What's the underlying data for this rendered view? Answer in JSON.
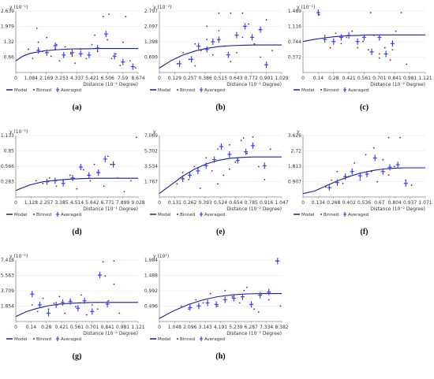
{
  "legend": {
    "model": "Model",
    "binned": "Binned",
    "averaged": "Averaged"
  },
  "colors": {
    "model": "#1a237e",
    "binned": "#8b1a2a",
    "averaged": "#3f3ff0",
    "axis": "#888888",
    "grid": "#e6e6e6"
  },
  "chart_data": [
    {
      "type": "scatter",
      "label": "(a)",
      "ylabel": "γ (10⁻¹)",
      "xlabel": "Distance (10⁻² Degree)",
      "xlim": [
        0,
        8.674
      ],
      "ylim": [
        0,
        2.639
      ],
      "xticks": [
        "0",
        "1.084",
        "2.169",
        "3.253",
        "4.337",
        "5.421",
        "6.506",
        "7.59",
        "8.674"
      ],
      "yticks": [
        "0.66",
        "1.32",
        "1.979",
        "2.639"
      ],
      "model": {
        "x": [
          0,
          0.5,
          1,
          2,
          3,
          4,
          5,
          6,
          7,
          8,
          8.674
        ],
        "y": [
          0.5,
          0.7,
          0.82,
          0.93,
          0.98,
          1.01,
          1.02,
          1.03,
          1.03,
          1.03,
          1.03
        ]
      },
      "binned": {
        "x": [
          0.9,
          1.2,
          1.6,
          1.9,
          2.2,
          2.5,
          2.8,
          3.1,
          3.5,
          3.9,
          4.2,
          4.6,
          5.0,
          5.4,
          5.8,
          6.2,
          6.5,
          6.8,
          7.1,
          7.4,
          7.8,
          8.1,
          8.5,
          1.5,
          2.9,
          4.0,
          5.6,
          6.6,
          7.6
        ],
        "y": [
          1.0,
          0.6,
          1.3,
          0.9,
          1.5,
          0.7,
          1.0,
          0.5,
          1.1,
          0.8,
          0.4,
          1.0,
          0.6,
          1.2,
          0.9,
          2.4,
          1.4,
          0.6,
          0.8,
          0.3,
          2.4,
          0.5,
          0.2,
          1.9,
          1.2,
          0.7,
          1.6,
          2.5,
          1.3
        ]
      },
      "averaged": {
        "x": [
          1.6,
          2.2,
          2.8,
          3.4,
          4.0,
          4.6,
          5.2,
          5.8,
          6.4,
          7.0,
          7.6,
          8.3
        ],
        "y": [
          0.95,
          0.85,
          1.15,
          0.75,
          0.85,
          0.8,
          0.75,
          1.05,
          1.65,
          0.7,
          0.45,
          0.25
        ]
      }
    },
    {
      "type": "scatter",
      "label": "(b)",
      "ylabel": "γ (10⁻²)",
      "xlabel": "Distance (10⁻¹ Degree)",
      "xlim": [
        0,
        1.029
      ],
      "ylim": [
        0,
        2.797
      ],
      "xticks": [
        "0",
        "0.129",
        "0.257",
        "0.386",
        "0.515",
        "0.643",
        "0.772",
        "0.901",
        "1.029"
      ],
      "yticks": [
        "0.699",
        "1.398",
        "2.097",
        "2.797"
      ],
      "model": {
        "x": [
          0,
          0.1,
          0.2,
          0.3,
          0.4,
          0.5,
          0.6,
          0.7,
          0.8,
          0.9,
          1.029
        ],
        "y": [
          0.2,
          0.55,
          0.8,
          0.98,
          1.1,
          1.18,
          1.22,
          1.24,
          1.25,
          1.25,
          1.25
        ]
      },
      "binned": {
        "x": [
          0.15,
          0.2,
          0.25,
          0.3,
          0.35,
          0.4,
          0.45,
          0.5,
          0.55,
          0.6,
          0.65,
          0.7,
          0.75,
          0.8,
          0.85,
          0.9,
          0.95,
          0.5,
          0.6,
          0.7,
          0.4,
          0.3
        ],
        "y": [
          0.4,
          0.9,
          0.6,
          1.3,
          1.0,
          1.5,
          0.8,
          2.7,
          1.2,
          2.7,
          0.9,
          1.6,
          2.2,
          1.3,
          0.7,
          2.4,
          1.0,
          1.9,
          0.5,
          2.7,
          2.1,
          0.3
        ]
      },
      "averaged": {
        "x": [
          0.17,
          0.27,
          0.33,
          0.4,
          0.45,
          0.5,
          0.58,
          0.65,
          0.72,
          0.78,
          0.85,
          0.9
        ],
        "y": [
          0.4,
          0.6,
          1.2,
          1.05,
          1.4,
          1.5,
          0.8,
          1.7,
          2.1,
          1.6,
          1.95,
          0.35
        ]
      }
    },
    {
      "type": "scatter",
      "label": "(c)",
      "ylabel": "γ (10⁻¹)",
      "xlabel": "Distance (10⁻² Degree)",
      "xlim": [
        0,
        1.121
      ],
      "ylim": [
        0,
        1.489
      ],
      "xticks": [
        "0",
        "0.14",
        "0.28",
        "0.421",
        "0.561",
        "0.701",
        "0.841",
        "0.981",
        "1.121"
      ],
      "yticks": [
        "0.372",
        "0.744",
        "1.116",
        "1.489"
      ],
      "model": {
        "x": [
          0,
          0.1,
          0.2,
          0.3,
          0.4,
          0.5,
          0.6,
          0.7,
          0.8,
          0.9,
          1.121
        ],
        "y": [
          0.75,
          0.8,
          0.84,
          0.87,
          0.89,
          0.9,
          0.91,
          0.91,
          0.91,
          0.91,
          0.91
        ]
      },
      "binned": {
        "x": [
          0.15,
          0.2,
          0.25,
          0.3,
          0.35,
          0.4,
          0.45,
          0.5,
          0.55,
          0.6,
          0.65,
          0.7,
          0.75,
          0.8,
          0.85,
          0.9,
          0.95,
          0.62,
          0.7,
          0.82
        ],
        "y": [
          1.4,
          0.9,
          0.6,
          0.95,
          0.7,
          0.85,
          1.0,
          0.6,
          0.75,
          0.55,
          0.9,
          0.45,
          0.6,
          0.3,
          1.0,
          1.45,
          0.2,
          1.45,
          0.35,
          0.55
        ]
      },
      "averaged": {
        "x": [
          0.14,
          0.2,
          0.28,
          0.35,
          0.42,
          0.5,
          0.56,
          0.63,
          0.7,
          0.76,
          0.82
        ],
        "y": [
          1.45,
          0.8,
          0.75,
          0.85,
          0.9,
          0.75,
          0.85,
          0.5,
          0.85,
          0.45,
          0.7
        ]
      }
    },
    {
      "type": "scatter",
      "label": "(d)",
      "ylabel": "γ (10⁻¹)",
      "xlabel": "Distance (10⁻¹ Degree)",
      "xlim": [
        0,
        9.028
      ],
      "ylim": [
        0,
        1.133
      ],
      "xticks": [
        "0",
        "1.128",
        "2.257",
        "3.385",
        "4.514",
        "5.642",
        "6.771",
        "7.899",
        "9.028"
      ],
      "yticks": [
        "0.283",
        "0.566",
        "0.85",
        "1.133"
      ],
      "model": {
        "x": [
          0,
          1,
          2,
          3,
          4,
          5,
          6,
          7,
          8,
          9.028
        ],
        "y": [
          0.12,
          0.22,
          0.28,
          0.31,
          0.33,
          0.34,
          0.345,
          0.345,
          0.345,
          0.345
        ]
      },
      "binned": {
        "x": [
          1.5,
          2.0,
          2.5,
          3.0,
          3.5,
          4.0,
          4.5,
          5.0,
          5.5,
          6.0,
          6.5,
          7.0,
          7.5,
          8.0,
          8.5,
          8.9,
          6.8,
          5.8
        ],
        "y": [
          0.3,
          0.25,
          0.35,
          0.2,
          0.3,
          0.4,
          0.15,
          0.5,
          0.3,
          0.45,
          0.2,
          0.6,
          0.35,
          0.1,
          0.3,
          1.1,
          0.75,
          0.6
        ]
      },
      "averaged": {
        "x": [
          2.3,
          2.9,
          3.5,
          4.2,
          4.8,
          5.4,
          6.1,
          6.6,
          7.2
        ],
        "y": [
          0.28,
          0.3,
          0.25,
          0.35,
          0.55,
          0.4,
          0.45,
          0.7,
          0.6
        ]
      }
    },
    {
      "type": "scatter",
      "label": "(e)",
      "ylabel": "γ",
      "xlabel": "Distance (10⁻² Degree)",
      "xlim": [
        0,
        1.047
      ],
      "ylim": [
        0,
        7.069
      ],
      "xticks": [
        "0",
        "0.131",
        "0.262",
        "0.393",
        "0.524",
        "0.654",
        "0.785",
        "0.916",
        "1.047"
      ],
      "yticks": [
        "1.767",
        "3.534",
        "5.302",
        "7.069"
      ],
      "model": {
        "x": [
          0,
          0.1,
          0.2,
          0.3,
          0.4,
          0.5,
          0.6,
          0.7,
          0.8,
          0.9,
          1.047
        ],
        "y": [
          0.4,
          1.4,
          2.4,
          3.2,
          3.8,
          4.2,
          4.45,
          4.55,
          4.6,
          4.6,
          4.6
        ]
      },
      "binned": {
        "x": [
          0.15,
          0.2,
          0.25,
          0.3,
          0.35,
          0.4,
          0.45,
          0.5,
          0.55,
          0.6,
          0.65,
          0.7,
          0.75,
          0.8,
          0.85,
          0.9,
          0.95,
          0.5,
          0.6,
          0.72
        ],
        "y": [
          1.5,
          2.8,
          2.0,
          3.5,
          1.0,
          4.5,
          3.0,
          5.5,
          2.5,
          6.0,
          4.0,
          6.5,
          5.0,
          6.9,
          3.5,
          2.0,
          5.5,
          1.5,
          3.2,
          6.8
        ]
      },
      "averaged": {
        "x": [
          0.2,
          0.26,
          0.33,
          0.4,
          0.47,
          0.53,
          0.6,
          0.67,
          0.74,
          0.8,
          0.9
        ],
        "y": [
          2.1,
          2.5,
          3.0,
          3.6,
          4.3,
          5.8,
          4.9,
          4.2,
          5.2,
          5.9,
          3.6
        ]
      }
    },
    {
      "type": "scatter",
      "label": "(f)",
      "ylabel": "γ",
      "xlabel": "Distance (10⁻² Degree)",
      "xlim": [
        0,
        1.071
      ],
      "ylim": [
        0,
        3.626
      ],
      "xticks": [
        "0",
        "0.134",
        "0.268",
        "0.402",
        "0.536",
        "0.67",
        "0.804",
        "0.937",
        "1.071"
      ],
      "yticks": [
        "0.907",
        "1.813",
        "2.72",
        "3.626"
      ],
      "model": {
        "x": [
          0,
          0.1,
          0.2,
          0.3,
          0.4,
          0.5,
          0.6,
          0.7,
          0.8,
          0.9,
          1.071
        ],
        "y": [
          0.2,
          0.35,
          0.65,
          0.95,
          1.2,
          1.4,
          1.55,
          1.65,
          1.7,
          1.72,
          1.72
        ]
      },
      "binned": {
        "x": [
          0.2,
          0.25,
          0.3,
          0.35,
          0.4,
          0.45,
          0.5,
          0.55,
          0.6,
          0.65,
          0.7,
          0.75,
          0.8,
          0.85,
          0.9,
          0.95,
          0.62,
          0.75
        ],
        "y": [
          0.6,
          1.0,
          1.5,
          0.8,
          1.2,
          2.0,
          1.0,
          2.5,
          1.5,
          0.9,
          2.2,
          3.5,
          1.8,
          3.5,
          1.0,
          0.7,
          2.9,
          1.3
        ]
      },
      "averaged": {
        "x": [
          0.23,
          0.3,
          0.37,
          0.43,
          0.5,
          0.56,
          0.63,
          0.7,
          0.76,
          0.83,
          0.9
        ],
        "y": [
          0.55,
          0.85,
          1.2,
          1.5,
          1.25,
          1.35,
          2.3,
          1.5,
          1.75,
          1.9,
          0.8
        ]
      }
    },
    {
      "type": "scatter",
      "label": "(g)",
      "ylabel": "γ (10⁻¹)",
      "xlabel": "Distance (10⁻² Degree)",
      "xlim": [
        0,
        1.121
      ],
      "ylim": [
        0,
        7.418
      ],
      "xticks": [
        "0",
        "0.14",
        "0.28",
        "0.421",
        "0.561",
        "0.701",
        "0.841",
        "0.981",
        "1.121"
      ],
      "yticks": [
        "1.854",
        "3.709",
        "5.563",
        "7.418"
      ],
      "model": {
        "x": [
          0,
          0.1,
          0.2,
          0.3,
          0.4,
          0.5,
          0.6,
          0.7,
          0.8,
          0.9,
          1.121
        ],
        "y": [
          0.6,
          1.2,
          1.6,
          1.9,
          2.1,
          2.2,
          2.25,
          2.3,
          2.3,
          2.3,
          2.3
        ]
      },
      "binned": {
        "x": [
          0.15,
          0.2,
          0.25,
          0.3,
          0.35,
          0.4,
          0.45,
          0.5,
          0.55,
          0.6,
          0.65,
          0.7,
          0.75,
          0.8,
          0.85,
          0.9,
          0.95,
          0.82,
          0.9
        ],
        "y": [
          2.0,
          1.2,
          2.8,
          1.5,
          2.2,
          3.0,
          1.0,
          2.5,
          1.8,
          3.2,
          0.8,
          2.0,
          1.5,
          7.2,
          2.5,
          4.5,
          1.0,
          5.5,
          7.3
        ]
      },
      "averaged": {
        "x": [
          0.15,
          0.22,
          0.3,
          0.37,
          0.43,
          0.5,
          0.57,
          0.63,
          0.7,
          0.77,
          0.84
        ],
        "y": [
          3.3,
          2.0,
          1.0,
          2.0,
          2.3,
          2.4,
          1.6,
          2.5,
          1.2,
          5.6,
          2.1
        ]
      }
    },
    {
      "type": "scatter",
      "label": "(h)",
      "ylabel": "γ (10¹)",
      "xlabel": "Distance (10⁻¹ Degree)",
      "xlim": [
        0,
        8.382
      ],
      "ylim": [
        0,
        1.984
      ],
      "xticks": [
        "0",
        "1.048",
        "2.096",
        "3.143",
        "4.191",
        "5.239",
        "6.287",
        "7.334",
        "8.382"
      ],
      "yticks": [
        "0.496",
        "0.992",
        "1.488",
        "1.984"
      ],
      "model": {
        "x": [
          0,
          1,
          2,
          3,
          4,
          5,
          6,
          7,
          8,
          8.382
        ],
        "y": [
          0.1,
          0.35,
          0.55,
          0.7,
          0.8,
          0.86,
          0.89,
          0.9,
          0.9,
          0.9
        ]
      },
      "binned": {
        "x": [
          1.5,
          2.0,
          2.5,
          3.0,
          3.5,
          4.0,
          4.5,
          5.0,
          5.5,
          6.0,
          6.5,
          7.0,
          7.5,
          8.0,
          8.3,
          5.8,
          6.8
        ],
        "y": [
          0.5,
          0.4,
          0.7,
          0.6,
          0.9,
          0.5,
          1.0,
          0.8,
          0.6,
          1.1,
          0.4,
          0.9,
          0.7,
          1.95,
          0.5,
          1.0,
          0.3
        ]
      },
      "averaged": {
        "x": [
          2.1,
          2.7,
          3.3,
          3.9,
          4.5,
          5.1,
          5.7,
          6.3,
          6.9,
          7.5,
          8.1
        ],
        "y": [
          0.45,
          0.5,
          0.6,
          0.55,
          0.7,
          0.75,
          0.8,
          0.55,
          0.85,
          0.95,
          1.95
        ]
      }
    }
  ]
}
